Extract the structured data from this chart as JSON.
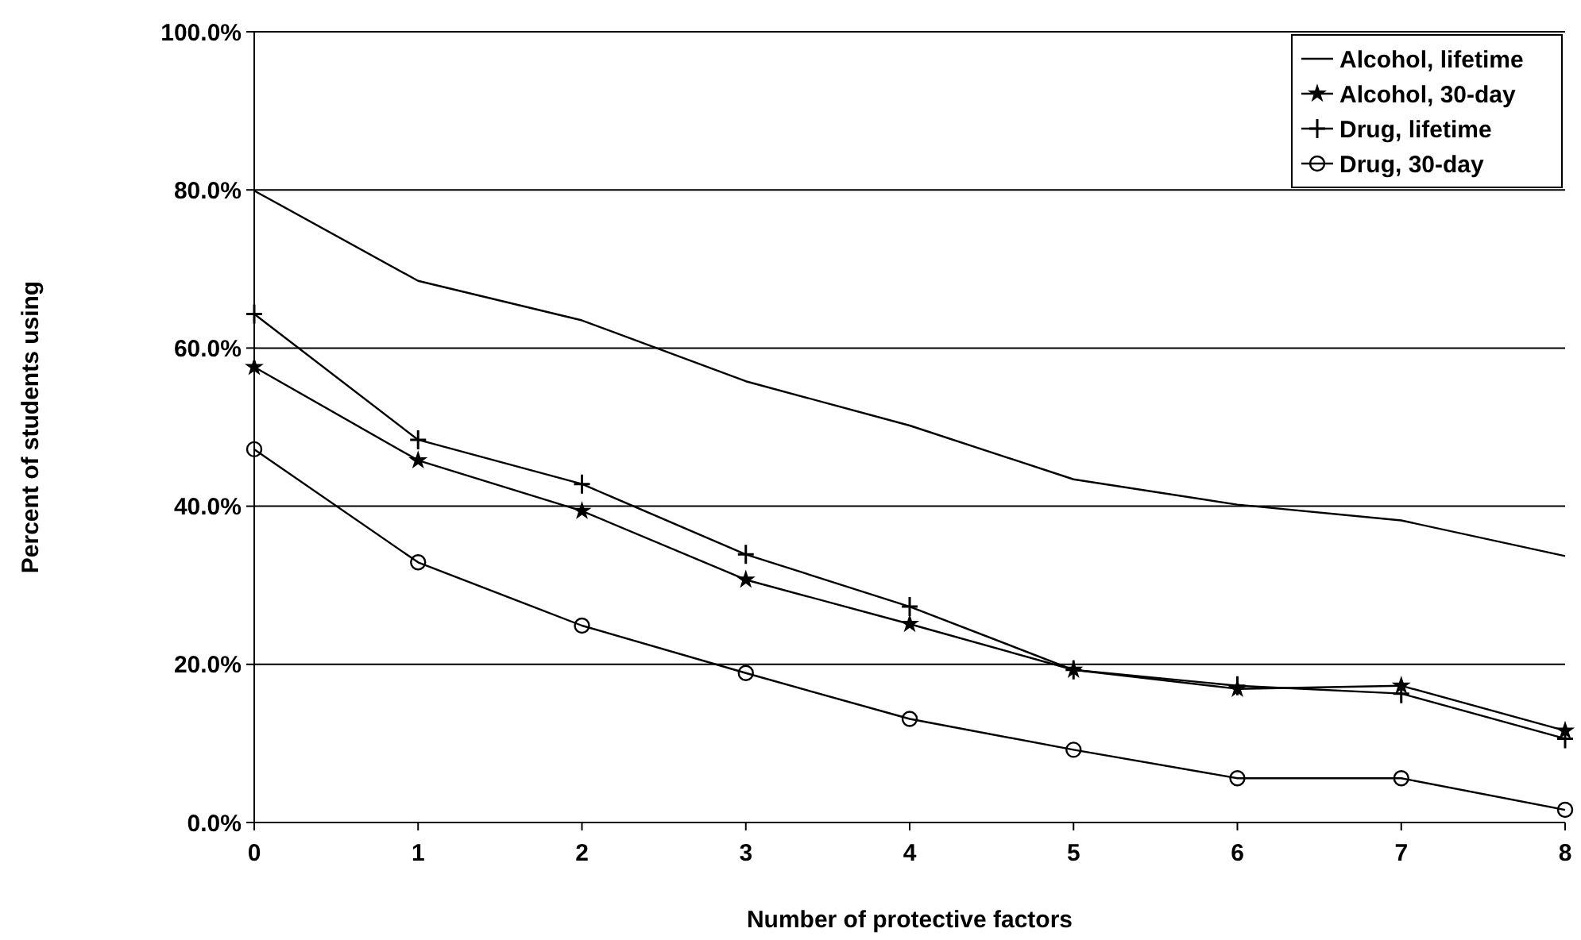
{
  "chart_data": {
    "type": "line",
    "xlabel": "Number of protective factors",
    "ylabel": "Percent of students using",
    "x": [
      0,
      1,
      2,
      3,
      4,
      5,
      6,
      7,
      8
    ],
    "xlim": [
      0,
      8
    ],
    "xticks": [
      0,
      1,
      2,
      3,
      4,
      5,
      6,
      7,
      8
    ],
    "ylim": [
      0,
      100
    ],
    "yticks": [
      {
        "value": 0,
        "label": "0.0%"
      },
      {
        "value": 20,
        "label": "20.0%"
      },
      {
        "value": 40,
        "label": "40.0%"
      },
      {
        "value": 60,
        "label": "60.0%"
      },
      {
        "value": 80,
        "label": "80.0%"
      },
      {
        "value": 100,
        "label": "100.0%"
      }
    ],
    "grid": "y",
    "legend": "top right",
    "line_style": "solid",
    "series": [
      {
        "name": "Alcohol, lifetime",
        "color": "#000000",
        "marker": "none",
        "values": [
          79.9,
          68.5,
          63.5,
          55.8,
          50.2,
          43.4,
          40.2,
          38.2,
          33.7
        ]
      },
      {
        "name": "Alcohol, 30-day",
        "color": "#000000",
        "marker": "star",
        "values": [
          57.6,
          45.8,
          39.4,
          30.7,
          25.1,
          19.3,
          16.9,
          17.3,
          11.6
        ]
      },
      {
        "name": "Drug, lifetime",
        "color": "#000000",
        "marker": "cross",
        "values": [
          64.3,
          48.4,
          42.8,
          33.9,
          27.3,
          19.3,
          17.3,
          16.3,
          10.6
        ]
      },
      {
        "name": "Drug, 30-day",
        "color": "#000000",
        "marker": "circle",
        "values": [
          47.2,
          32.9,
          24.9,
          18.9,
          13.1,
          9.2,
          5.6,
          5.6,
          1.6
        ]
      }
    ]
  }
}
